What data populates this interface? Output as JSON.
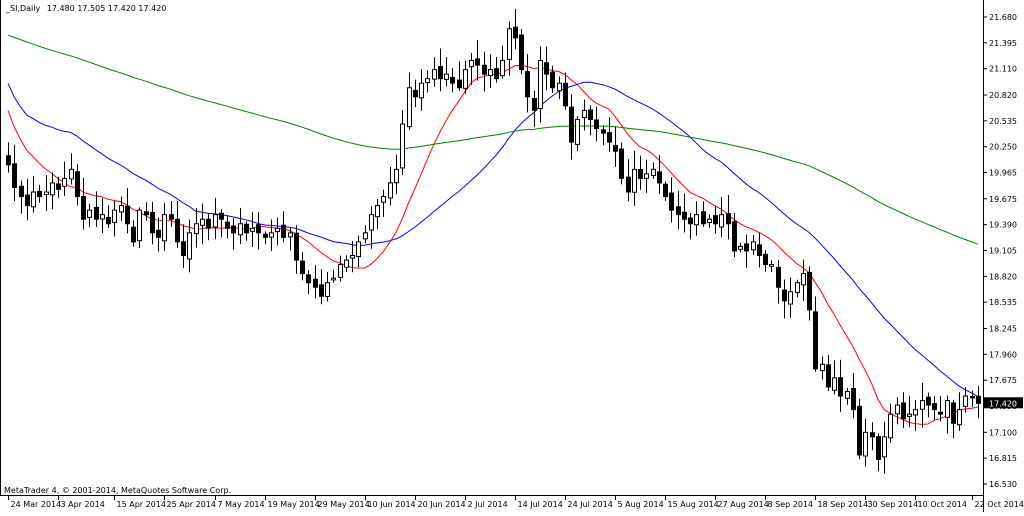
{
  "header": {
    "symbol": "_SI,Daily",
    "ohlc": "17.480 17.505 17.420 17.420"
  },
  "footer": {
    "copyright": "MetaTrader 4, © 2001-2014, MetaQuotes Software Corp."
  },
  "price_tag": "17.420",
  "colors": {
    "background": "#ffffff",
    "frame": "#000000",
    "ma_fast": "#ff0000",
    "ma_mid": "#0000ff",
    "ma_slow": "#008000",
    "bull": "#ffffff",
    "bear": "#000000"
  },
  "chart_data": {
    "type": "candlestick",
    "y_ticks": [
      "21.680",
      "21.395",
      "21.110",
      "20.820",
      "20.535",
      "20.250",
      "19.965",
      "19.675",
      "19.390",
      "19.105",
      "18.820",
      "18.535",
      "18.245",
      "17.960",
      "17.675",
      "17.390",
      "17.100",
      "16.815",
      "16.530"
    ],
    "ylim": [
      16.53,
      21.68
    ],
    "x_ticks": [
      {
        "label": "24 Mar 2014",
        "index": 0
      },
      {
        "label": "3 Apr 2014",
        "index": 8
      },
      {
        "label": "15 Apr 2014",
        "index": 17
      },
      {
        "label": "25 Apr 2014",
        "index": 25
      },
      {
        "label": "7 May 2014",
        "index": 33
      },
      {
        "label": "19 May 2014",
        "index": 41
      },
      {
        "label": "29 May 2014",
        "index": 49
      },
      {
        "label": "10 Jun 2014",
        "index": 57
      },
      {
        "label": "20 Jun 2014",
        "index": 65
      },
      {
        "label": "2 Jul 2014",
        "index": 73
      },
      {
        "label": "14 Jul 2014",
        "index": 81
      },
      {
        "label": "24 Jul 2014",
        "index": 89
      },
      {
        "label": "5 Aug 2014",
        "index": 97
      },
      {
        "label": "15 Aug 2014",
        "index": 105
      },
      {
        "label": "27 Aug 2014",
        "index": 113
      },
      {
        "label": "8 Sep 2014",
        "index": 121
      },
      {
        "label": "18 Sep 2014",
        "index": 129
      },
      {
        "label": "30 Sep 2014",
        "index": 137
      },
      {
        "label": "10 Oct 2014",
        "index": 145
      },
      {
        "label": "22 Oct 2014",
        "index": 154
      }
    ],
    "last_price": 17.42,
    "close": [
      20.05,
      19.8,
      19.7,
      19.6,
      19.75,
      19.7,
      19.75,
      19.85,
      19.78,
      19.9,
      20.0,
      19.7,
      19.45,
      19.55,
      19.45,
      19.5,
      19.4,
      19.55,
      19.6,
      19.4,
      19.2,
      19.55,
      19.5,
      19.3,
      19.25,
      19.5,
      19.45,
      19.2,
      19.05,
      19.3,
      19.4,
      19.45,
      19.35,
      19.5,
      19.45,
      19.35,
      19.3,
      19.4,
      19.3,
      19.35,
      19.3,
      19.25,
      19.3,
      19.35,
      19.25,
      19.3,
      19.0,
      18.85,
      18.75,
      18.7,
      18.6,
      18.75,
      18.8,
      18.95,
      19.0,
      19.05,
      19.2,
      19.3,
      19.5,
      19.6,
      19.7,
      19.85,
      20.0,
      20.5,
      20.9,
      20.8,
      20.95,
      21.0,
      21.1,
      21.0,
      21.05,
      20.95,
      20.9,
      21.1,
      21.2,
      21.15,
      21.05,
      21.1,
      21.0,
      21.2,
      21.55,
      21.45,
      21.1,
      20.8,
      20.65,
      21.2,
      21.05,
      20.9,
      20.95,
      20.7,
      20.3,
      20.55,
      20.65,
      20.55,
      20.45,
      20.4,
      20.3,
      20.2,
      19.9,
      19.75,
      20.0,
      19.9,
      19.95,
      20.0,
      19.85,
      19.7,
      19.55,
      19.5,
      19.45,
      19.4,
      19.5,
      19.4,
      19.45,
      19.4,
      19.5,
      19.4,
      19.1,
      19.15,
      19.1,
      19.2,
      19.05,
      18.95,
      18.95,
      18.7,
      18.55,
      18.65,
      18.75,
      18.85,
      18.45,
      17.8,
      17.85,
      17.6,
      17.7,
      17.5,
      17.55,
      17.35,
      16.85,
      17.1,
      17.05,
      16.8,
      17.05,
      17.3,
      17.4,
      17.25,
      17.3,
      17.35,
      17.45,
      17.4,
      17.35,
      17.3,
      17.45,
      17.2,
      17.35,
      17.5,
      17.48,
      17.42
    ]
  }
}
